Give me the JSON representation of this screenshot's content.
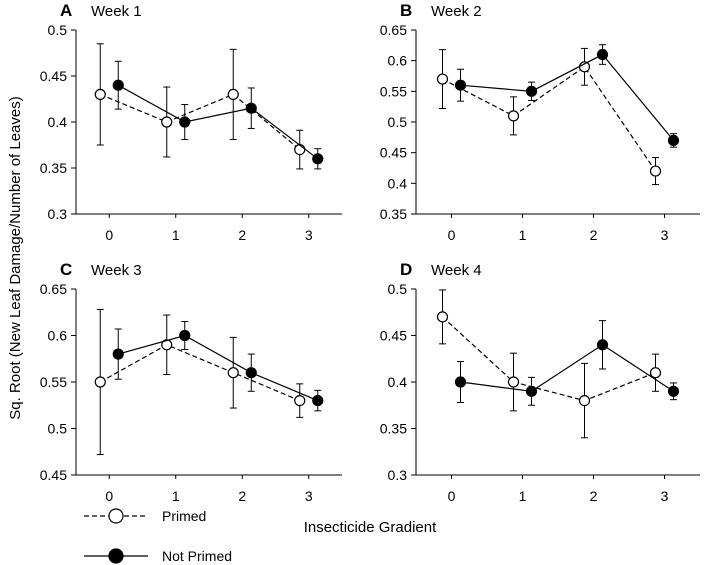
{
  "chart_data": {
    "type": "line",
    "ylabel": "Sq. Root (New Leaf Damage/Number of Leaves)",
    "xlabel": "Insecticide Gradient",
    "categories": [
      "0",
      "1",
      "2",
      "3"
    ],
    "legend": [
      {
        "name": "Primed",
        "style": "dashed",
        "marker": "open-circle"
      },
      {
        "name": "Not Primed",
        "style": "solid",
        "marker": "filled-circle"
      }
    ],
    "panels": [
      {
        "letter": "A",
        "title": "Week 1",
        "ylim": [
          0.3,
          0.5
        ],
        "yticks": [
          "0.3",
          "0.35",
          "0.4",
          "0.45",
          "0.5"
        ],
        "series": [
          {
            "name": "Primed",
            "values": [
              0.43,
              0.4,
              0.43,
              0.37
            ],
            "err": [
              0.055,
              0.038,
              0.049,
              0.021
            ]
          },
          {
            "name": "Not Primed",
            "values": [
              0.44,
              0.4,
              0.415,
              0.36
            ],
            "err": [
              0.026,
              0.019,
              0.022,
              0.011
            ]
          }
        ]
      },
      {
        "letter": "B",
        "title": "Week 2",
        "ylim": [
          0.35,
          0.65
        ],
        "yticks": [
          "0.35",
          "0.4",
          "0.45",
          "0.5",
          "0.55",
          "0.6",
          "0.65"
        ],
        "series": [
          {
            "name": "Primed",
            "values": [
              0.57,
              0.51,
              0.59,
              0.42
            ],
            "err": [
              0.048,
              0.031,
              0.03,
              0.022
            ]
          },
          {
            "name": "Not Primed",
            "values": [
              0.56,
              0.55,
              0.61,
              0.47
            ],
            "err": [
              0.026,
              0.015,
              0.016,
              0.011
            ]
          }
        ]
      },
      {
        "letter": "C",
        "title": "Week 3",
        "ylim": [
          0.45,
          0.65
        ],
        "yticks": [
          "0.45",
          "0.5",
          "0.55",
          "0.6",
          "0.65"
        ],
        "series": [
          {
            "name": "Primed",
            "values": [
              0.55,
              0.59,
              0.56,
              0.53
            ],
            "err": [
              0.078,
              0.032,
              0.038,
              0.018
            ]
          },
          {
            "name": "Not Primed",
            "values": [
              0.58,
              0.6,
              0.56,
              0.53
            ],
            "err": [
              0.027,
              0.015,
              0.02,
              0.011
            ]
          }
        ]
      },
      {
        "letter": "D",
        "title": "Week 4",
        "ylim": [
          0.3,
          0.5
        ],
        "yticks": [
          "0.3",
          "0.35",
          "0.4",
          "0.45",
          "0.5"
        ],
        "series": [
          {
            "name": "Primed",
            "values": [
              0.47,
              0.4,
              0.38,
              0.41
            ],
            "err": [
              0.029,
              0.031,
              0.04,
              0.02
            ]
          },
          {
            "name": "Not Primed",
            "values": [
              0.4,
              0.39,
              0.44,
              0.39
            ],
            "err": [
              0.022,
              0.015,
              0.026,
              0.009
            ]
          }
        ]
      }
    ]
  }
}
